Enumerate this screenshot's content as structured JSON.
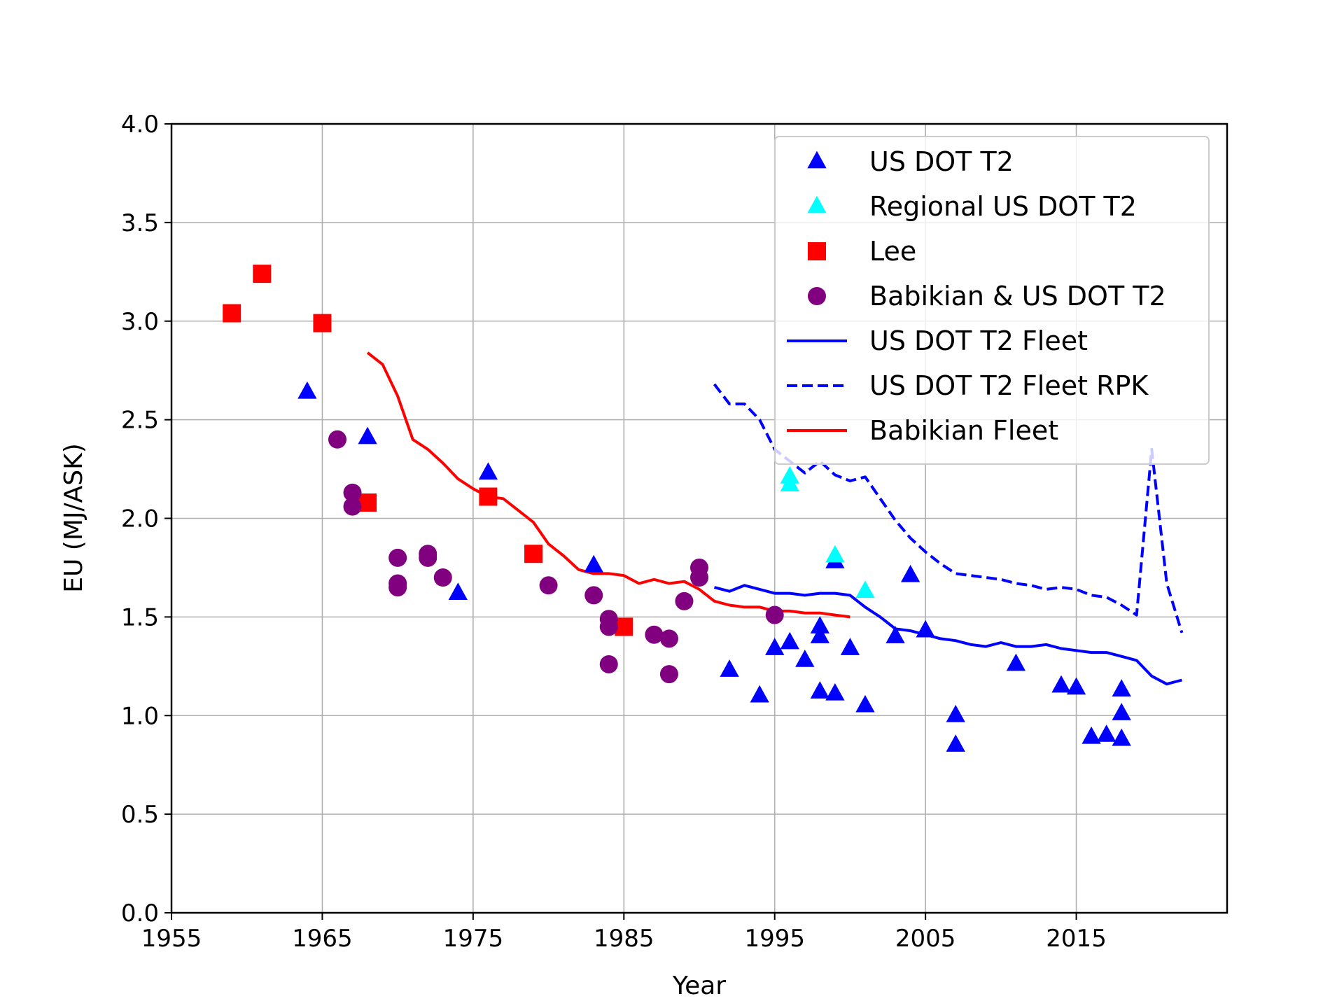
{
  "chart_data": {
    "type": "scatter",
    "title": "",
    "xlabel": "Year",
    "ylabel": "EU (MJ/ASK)",
    "xlim": [
      1955,
      2025
    ],
    "ylim": [
      0.0,
      4.0
    ],
    "xticks": [
      "1955",
      "1965",
      "1975",
      "1985",
      "1995",
      "2005",
      "2015"
    ],
    "yticks": [
      "0.0",
      "0.5",
      "1.0",
      "1.5",
      "2.0",
      "2.5",
      "3.0",
      "3.5",
      "4.0"
    ],
    "grid": true,
    "legend_position": "top-right",
    "series": [
      {
        "name": "US DOT T2",
        "kind": "scatter",
        "marker": "triangle",
        "color": "#0000ff",
        "points": [
          [
            1964,
            2.64
          ],
          [
            1968,
            2.41
          ],
          [
            1974,
            1.62
          ],
          [
            1976,
            2.23
          ],
          [
            1983,
            1.76
          ],
          [
            1992,
            1.23
          ],
          [
            1994,
            1.1
          ],
          [
            1995,
            1.34
          ],
          [
            1996,
            1.37
          ],
          [
            1997,
            1.28
          ],
          [
            1998,
            1.12
          ],
          [
            1998,
            1.4
          ],
          [
            1998,
            1.45
          ],
          [
            1999,
            1.78
          ],
          [
            1999,
            1.11
          ],
          [
            2000,
            1.34
          ],
          [
            2001,
            1.05
          ],
          [
            2003,
            1.4
          ],
          [
            2004,
            1.71
          ],
          [
            2005,
            1.43
          ],
          [
            2007,
            1.0
          ],
          [
            2007,
            0.85
          ],
          [
            2011,
            1.26
          ],
          [
            2014,
            1.15
          ],
          [
            2015,
            1.14
          ],
          [
            2016,
            0.89
          ],
          [
            2017,
            0.9
          ],
          [
            2018,
            0.88
          ],
          [
            2018,
            1.01
          ],
          [
            2018,
            1.13
          ]
        ]
      },
      {
        "name": "Regional US DOT T2",
        "kind": "scatter",
        "marker": "triangle",
        "color": "#00ffff",
        "points": [
          [
            1996,
            2.21
          ],
          [
            1996,
            2.17
          ],
          [
            1999,
            1.81
          ],
          [
            2001,
            1.63
          ]
        ]
      },
      {
        "name": "Lee",
        "kind": "scatter",
        "marker": "square",
        "color": "#ff0000",
        "points": [
          [
            1959,
            3.04
          ],
          [
            1961,
            3.24
          ],
          [
            1965,
            2.99
          ],
          [
            1968,
            2.08
          ],
          [
            1976,
            2.11
          ],
          [
            1979,
            1.82
          ],
          [
            1985,
            1.45
          ]
        ]
      },
      {
        "name": "Babikian & US DOT T2",
        "kind": "scatter",
        "marker": "circle",
        "color": "#800080",
        "points": [
          [
            1966,
            2.4
          ],
          [
            1967,
            2.13
          ],
          [
            1967,
            2.06
          ],
          [
            1970,
            1.8
          ],
          [
            1970,
            1.67
          ],
          [
            1970,
            1.65
          ],
          [
            1972,
            1.82
          ],
          [
            1972,
            1.8
          ],
          [
            1973,
            1.7
          ],
          [
            1980,
            1.66
          ],
          [
            1983,
            1.61
          ],
          [
            1984,
            1.49
          ],
          [
            1984,
            1.45
          ],
          [
            1984,
            1.26
          ],
          [
            1987,
            1.41
          ],
          [
            1988,
            1.39
          ],
          [
            1988,
            1.21
          ],
          [
            1989,
            1.58
          ],
          [
            1990,
            1.75
          ],
          [
            1990,
            1.7
          ],
          [
            1995,
            1.51
          ]
        ]
      },
      {
        "name": "US DOT T2 Fleet",
        "kind": "line",
        "dash": "solid",
        "color": "#0000ff",
        "points": [
          [
            1991,
            1.65
          ],
          [
            1992,
            1.63
          ],
          [
            1993,
            1.66
          ],
          [
            1994,
            1.64
          ],
          [
            1995,
            1.62
          ],
          [
            1996,
            1.62
          ],
          [
            1997,
            1.61
          ],
          [
            1998,
            1.62
          ],
          [
            1999,
            1.62
          ],
          [
            2000,
            1.61
          ],
          [
            2001,
            1.55
          ],
          [
            2002,
            1.5
          ],
          [
            2003,
            1.44
          ],
          [
            2004,
            1.43
          ],
          [
            2005,
            1.41
          ],
          [
            2006,
            1.39
          ],
          [
            2007,
            1.38
          ],
          [
            2008,
            1.36
          ],
          [
            2009,
            1.35
          ],
          [
            2010,
            1.37
          ],
          [
            2011,
            1.35
          ],
          [
            2012,
            1.35
          ],
          [
            2013,
            1.36
          ],
          [
            2014,
            1.34
          ],
          [
            2015,
            1.33
          ],
          [
            2016,
            1.32
          ],
          [
            2017,
            1.32
          ],
          [
            2018,
            1.3
          ],
          [
            2019,
            1.28
          ],
          [
            2020,
            1.2
          ],
          [
            2021,
            1.16
          ],
          [
            2022,
            1.18
          ]
        ]
      },
      {
        "name": "US DOT T2 Fleet RPK",
        "kind": "line",
        "dash": "dashed",
        "color": "#0000ff",
        "points": [
          [
            1991,
            2.68
          ],
          [
            1992,
            2.58
          ],
          [
            1993,
            2.58
          ],
          [
            1994,
            2.5
          ],
          [
            1995,
            2.35
          ],
          [
            1996,
            2.29
          ],
          [
            1997,
            2.23
          ],
          [
            1998,
            2.29
          ],
          [
            1999,
            2.22
          ],
          [
            2000,
            2.19
          ],
          [
            2001,
            2.21
          ],
          [
            2002,
            2.1
          ],
          [
            2003,
            1.99
          ],
          [
            2004,
            1.9
          ],
          [
            2005,
            1.83
          ],
          [
            2006,
            1.77
          ],
          [
            2007,
            1.72
          ],
          [
            2008,
            1.71
          ],
          [
            2009,
            1.7
          ],
          [
            2010,
            1.69
          ],
          [
            2011,
            1.67
          ],
          [
            2012,
            1.66
          ],
          [
            2013,
            1.64
          ],
          [
            2014,
            1.65
          ],
          [
            2015,
            1.64
          ],
          [
            2016,
            1.61
          ],
          [
            2017,
            1.6
          ],
          [
            2018,
            1.56
          ],
          [
            2019,
            1.51
          ],
          [
            2020,
            2.35
          ],
          [
            2021,
            1.67
          ],
          [
            2022,
            1.42
          ]
        ]
      },
      {
        "name": "Babikian Fleet",
        "kind": "line",
        "dash": "solid",
        "color": "#ff0000",
        "points": [
          [
            1968,
            2.84
          ],
          [
            1969,
            2.78
          ],
          [
            1970,
            2.62
          ],
          [
            1971,
            2.4
          ],
          [
            1972,
            2.35
          ],
          [
            1973,
            2.28
          ],
          [
            1974,
            2.2
          ],
          [
            1975,
            2.15
          ],
          [
            1976,
            2.11
          ],
          [
            1977,
            2.1
          ],
          [
            1978,
            2.04
          ],
          [
            1979,
            1.98
          ],
          [
            1980,
            1.87
          ],
          [
            1981,
            1.81
          ],
          [
            1982,
            1.74
          ],
          [
            1983,
            1.72
          ],
          [
            1984,
            1.72
          ],
          [
            1985,
            1.71
          ],
          [
            1986,
            1.67
          ],
          [
            1987,
            1.69
          ],
          [
            1988,
            1.67
          ],
          [
            1989,
            1.68
          ],
          [
            1990,
            1.64
          ],
          [
            1991,
            1.58
          ],
          [
            1992,
            1.56
          ],
          [
            1993,
            1.55
          ],
          [
            1994,
            1.55
          ],
          [
            1995,
            1.53
          ],
          [
            1996,
            1.53
          ],
          [
            1997,
            1.52
          ],
          [
            1998,
            1.52
          ],
          [
            1999,
            1.51
          ],
          [
            2000,
            1.5
          ]
        ]
      }
    ]
  }
}
